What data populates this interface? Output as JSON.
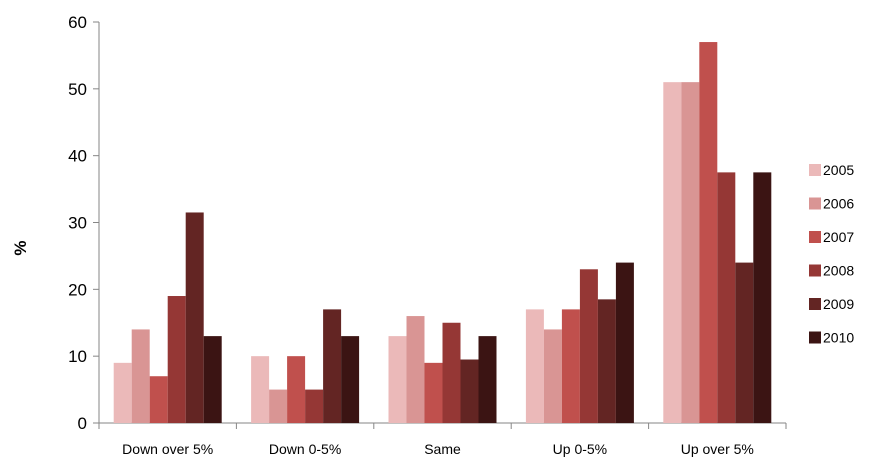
{
  "chart_data": {
    "type": "bar",
    "title": "",
    "xlabel": "",
    "ylabel": "%",
    "ylim": [
      0,
      60
    ],
    "yticks": [
      0,
      10,
      20,
      30,
      40,
      50,
      60
    ],
    "grid": false,
    "legend_position": "right",
    "categories": [
      "Down over 5%",
      "Down 0-5%",
      "Same",
      "Up 0-5%",
      "Up over 5%"
    ],
    "series": [
      {
        "name": "2005",
        "color": "#ebb9b9",
        "values": [
          9,
          10,
          13,
          17,
          51
        ]
      },
      {
        "name": "2006",
        "color": "#d99594",
        "values": [
          14,
          5,
          16,
          14,
          51
        ]
      },
      {
        "name": "2007",
        "color": "#c0504d",
        "values": [
          7,
          10,
          9,
          17,
          57
        ]
      },
      {
        "name": "2008",
        "color": "#953735",
        "values": [
          19,
          5,
          15,
          23,
          37.5
        ]
      },
      {
        "name": "2009",
        "color": "#632523",
        "values": [
          31.5,
          17,
          9.5,
          18.5,
          24
        ]
      },
      {
        "name": "2010",
        "color": "#3b1413",
        "values": [
          13,
          13,
          13,
          24,
          37.5
        ]
      }
    ]
  }
}
